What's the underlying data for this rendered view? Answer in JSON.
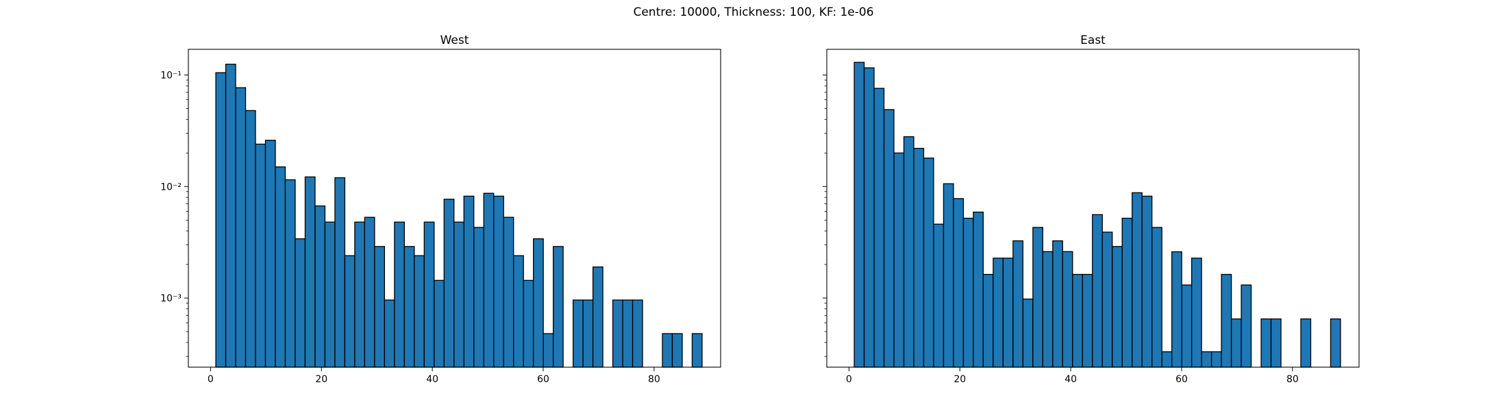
{
  "figure": {
    "suptitle": "Centre: 10000, Thickness: 100, KF: 1e-06"
  },
  "chart_data": [
    {
      "type": "bar",
      "title": "West",
      "xlabel": "",
      "ylabel": "",
      "yscale": "log",
      "xlim": [
        -4,
        92
      ],
      "ylim": [
        0.00024,
        0.17
      ],
      "xticks": [
        0,
        20,
        40,
        60,
        80
      ],
      "yticks": [
        0.001,
        0.01,
        0.1
      ],
      "yticklabels": [
        "10⁻³",
        "10⁻²",
        "10⁻¹"
      ],
      "bin_width": 1.79,
      "color": "#1f77b4",
      "edgecolor": "#000000",
      "grid": false,
      "bins_start": [
        0.95,
        2.74,
        4.53,
        6.32,
        8.11,
        9.9,
        11.69,
        13.48,
        15.27,
        17.06,
        18.85,
        20.64,
        22.43,
        24.22,
        26.01,
        27.8,
        29.59,
        31.38,
        33.17,
        34.96,
        36.75,
        38.54,
        40.33,
        42.12,
        43.91,
        45.7,
        47.49,
        49.28,
        51.07,
        52.86,
        54.65,
        56.44,
        58.23,
        60.02,
        61.81,
        63.6,
        65.39,
        67.18,
        68.97,
        70.76,
        72.55,
        74.34,
        76.13,
        77.92,
        79.71,
        81.5,
        83.29,
        85.08,
        86.87
      ],
      "values": [
        0.105,
        0.125,
        0.077,
        0.048,
        0.024,
        0.026,
        0.015,
        0.0115,
        0.0034,
        0.0122,
        0.0067,
        0.0048,
        0.012,
        0.0024,
        0.0048,
        0.0053,
        0.0029,
        0.00096,
        0.0048,
        0.0029,
        0.0024,
        0.0048,
        0.00144,
        0.0077,
        0.0048,
        0.0082,
        0.0043,
        0.0087,
        0.0082,
        0.0053,
        0.0024,
        0.00144,
        0.0034,
        0.00048,
        0.0029,
        0,
        0.00096,
        0.00096,
        0.0019,
        0,
        0.00096,
        0.00096,
        0.00096,
        0,
        0,
        0.00048,
        0.00048,
        0,
        0.00048
      ]
    },
    {
      "type": "bar",
      "title": "East",
      "xlabel": "",
      "ylabel": "",
      "yscale": "log",
      "xlim": [
        -4,
        92
      ],
      "ylim": [
        0.00024,
        0.17
      ],
      "xticks": [
        0,
        20,
        40,
        60,
        80
      ],
      "yticks": [
        0.001,
        0.01,
        0.1
      ],
      "yticklabels": [],
      "bin_width": 1.79,
      "color": "#1f77b4",
      "edgecolor": "#000000",
      "grid": false,
      "bins_start": [
        0.95,
        2.74,
        4.53,
        6.32,
        8.11,
        9.9,
        11.69,
        13.48,
        15.27,
        17.06,
        18.85,
        20.64,
        22.43,
        24.22,
        26.01,
        27.8,
        29.59,
        31.38,
        33.17,
        34.96,
        36.75,
        38.54,
        40.33,
        42.12,
        43.91,
        45.7,
        47.49,
        49.28,
        51.07,
        52.86,
        54.65,
        56.44,
        58.23,
        60.02,
        61.81,
        63.6,
        65.39,
        67.18,
        68.97,
        70.76,
        72.55,
        74.34,
        76.13,
        77.92,
        79.71,
        81.5,
        83.29,
        85.08,
        86.87
      ],
      "values": [
        0.13,
        0.116,
        0.076,
        0.049,
        0.02,
        0.028,
        0.022,
        0.018,
        0.0046,
        0.0106,
        0.0078,
        0.0052,
        0.0059,
        0.00163,
        0.00228,
        0.00228,
        0.00326,
        0.00098,
        0.0043,
        0.00261,
        0.00326,
        0.00261,
        0.00163,
        0.00163,
        0.0056,
        0.0039,
        0.0029,
        0.0052,
        0.0088,
        0.0082,
        0.0043,
        0.00033,
        0.0026,
        0.00131,
        0.00228,
        0.00033,
        0.00033,
        0.00163,
        0.00065,
        0.00131,
        0,
        0.00065,
        0.00065,
        0,
        0,
        0.00065,
        0,
        0,
        0.00065
      ]
    }
  ]
}
